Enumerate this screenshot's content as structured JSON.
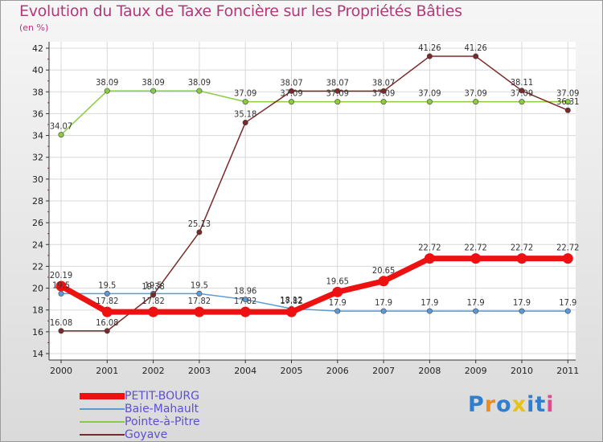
{
  "chart_data": {
    "type": "line",
    "title": "Evolution du Taux de Taxe Foncière sur les Propriétés Bâties",
    "ylabel": "(en %)",
    "xlabel": "",
    "categories": [
      "2000",
      "2001",
      "2002",
      "2003",
      "2004",
      "2005",
      "2006",
      "2007",
      "2008",
      "2009",
      "2010",
      "2011"
    ],
    "ylim": [
      14,
      42
    ],
    "yticks": [
      14,
      16,
      18,
      20,
      22,
      24,
      26,
      28,
      30,
      32,
      34,
      36,
      38,
      40,
      42
    ],
    "series": [
      {
        "name": "Baie-Mahault",
        "color": "#5b9ad4",
        "values": [
          19.5,
          19.5,
          19.5,
          19.5,
          18.96,
          18.12,
          17.9,
          17.9,
          17.9,
          17.9,
          17.9,
          17.9
        ],
        "labels": [
          "19.5",
          "19.5",
          "19.5",
          "19.5",
          "18.96",
          "18.12",
          "17.9",
          "17.9",
          "17.9",
          "17.9",
          "17.9",
          "17.9"
        ]
      },
      {
        "name": "Pointe-à-Pitre",
        "color": "#88cc44",
        "values": [
          34.07,
          38.09,
          38.09,
          38.09,
          37.09,
          37.09,
          37.09,
          37.09,
          37.09,
          37.09,
          37.09,
          37.09
        ],
        "labels": [
          "34.07",
          "38.09",
          "38.09",
          "38.09",
          "37.09",
          "37.09",
          "37.09",
          "37.09",
          "37.09",
          "37.09",
          "37.09",
          "37.09"
        ]
      },
      {
        "name": "Goyave",
        "color": "#7a2a2a",
        "values": [
          16.08,
          16.08,
          19.38,
          25.13,
          35.18,
          38.07,
          38.07,
          38.07,
          41.26,
          41.26,
          38.11,
          36.31
        ],
        "labels": [
          "16.08",
          "16.08",
          "19.38",
          "25.13",
          "35.18",
          "38.07",
          "38.07",
          "38.07",
          "41.26",
          "41.26",
          "38.11",
          "36.31"
        ]
      },
      {
        "name": "PETIT-BOURG",
        "color": "#ee1111",
        "values": [
          20.19,
          17.82,
          17.82,
          17.82,
          17.82,
          17.82,
          19.65,
          20.65,
          22.72,
          22.72,
          22.72,
          22.72
        ],
        "labels": [
          "20.19",
          "17.82",
          "17.82",
          "17.82",
          "17.82",
          "17.82",
          "19.65",
          "20.65",
          "22.72",
          "22.72",
          "22.72",
          "22.72"
        ]
      }
    ]
  },
  "legend": [
    {
      "name": "PETIT-BOURG",
      "color": "#ee1111"
    },
    {
      "name": "Baie-Mahault",
      "color": "#5b9ad4"
    },
    {
      "name": "Pointe-à-Pitre",
      "color": "#88cc44"
    },
    {
      "name": "Goyave",
      "color": "#7a2a2a"
    }
  ],
  "logo": {
    "letters": [
      "P",
      "r",
      "o",
      "x",
      "i",
      "t",
      "i"
    ],
    "colors": [
      "#2e7fd0",
      "#f08a1e",
      "#2e7fd0",
      "#e8c21a",
      "#2e7fd0",
      "#2e7fd0",
      "#e04a92"
    ]
  }
}
